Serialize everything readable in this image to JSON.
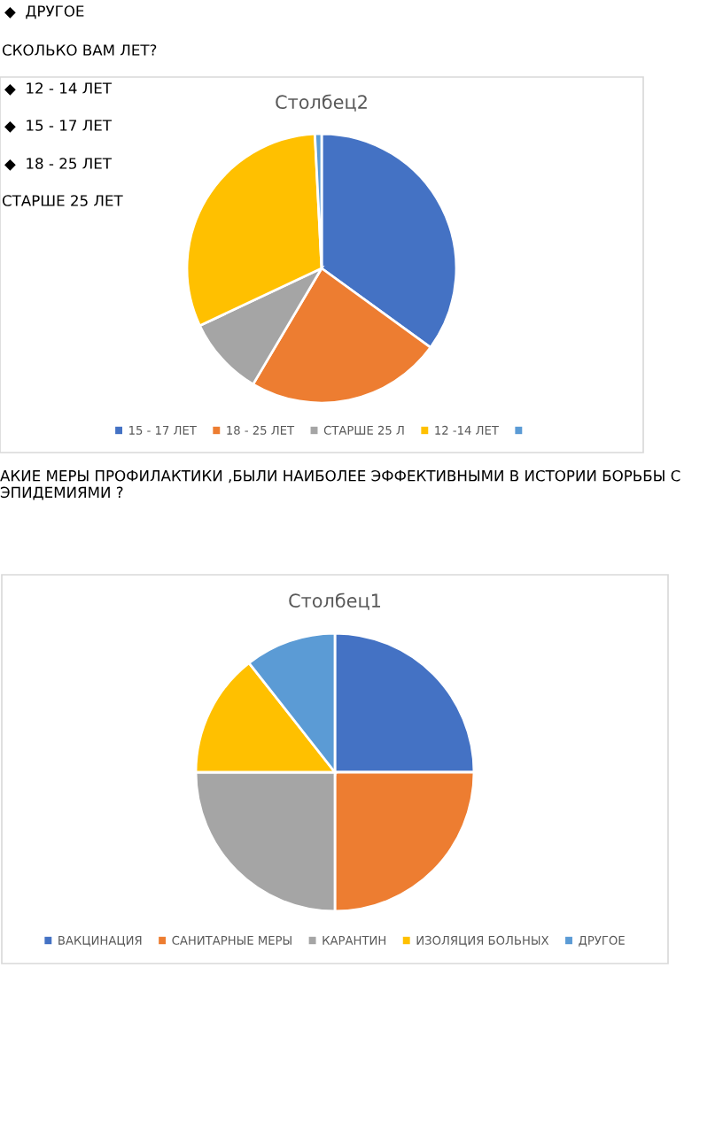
{
  "chart_data": [
    {
      "type": "pie",
      "title": "Столбец2",
      "categories": [
        "15 - 17 ЛЕТ",
        "18 - 25 ЛЕТ",
        "СТАРШЕ 25 Л",
        "12 -14 ЛЕТ",
        null
      ],
      "values": [
        35,
        23.5,
        9.5,
        31.2,
        0.8
      ],
      "colors": [
        "#4472c4",
        "#ed7d31",
        "#a5a5a5",
        "#ffc000",
        "#5b9bd5"
      ],
      "legend": "bottom",
      "annotations": [
        "◆  ДРУГОЕ",
        "СКОЛЬКО ВАМ ЛЕТ?",
        "◆  12 - 14 ЛЕТ",
        "◆  15 - 17 ЛЕТ",
        "◆  18 - 25 ЛЕТ",
        "СТАРШЕ 25 ЛЕТ"
      ]
    },
    {
      "type": "pie",
      "title": "Столбец1",
      "categories": [
        "ВАКЦИНАЦИЯ",
        "САНИТАРНЫЕ МЕРЫ",
        "КАРАНТИН",
        "ИЗОЛЯЦИЯ БОЛЬНЫХ",
        "ДРУГОЕ"
      ],
      "values": [
        25,
        25,
        25,
        14.4,
        10.6
      ],
      "colors": [
        "#4472c4",
        "#ed7d31",
        "#a5a5a5",
        "#ffc000",
        "#5b9bd5"
      ],
      "legend": "bottom",
      "annotations": [
        "АКИЕ МЕРЫ ПРОФИЛАКТИКИ ,БЫЛИ НАИБОЛЕЕ ЭФФЕКТИВНЫМИ В ИСТОРИИ БОРЬБЫ С ЭПИДЕМИЯМИ ?"
      ]
    }
  ]
}
